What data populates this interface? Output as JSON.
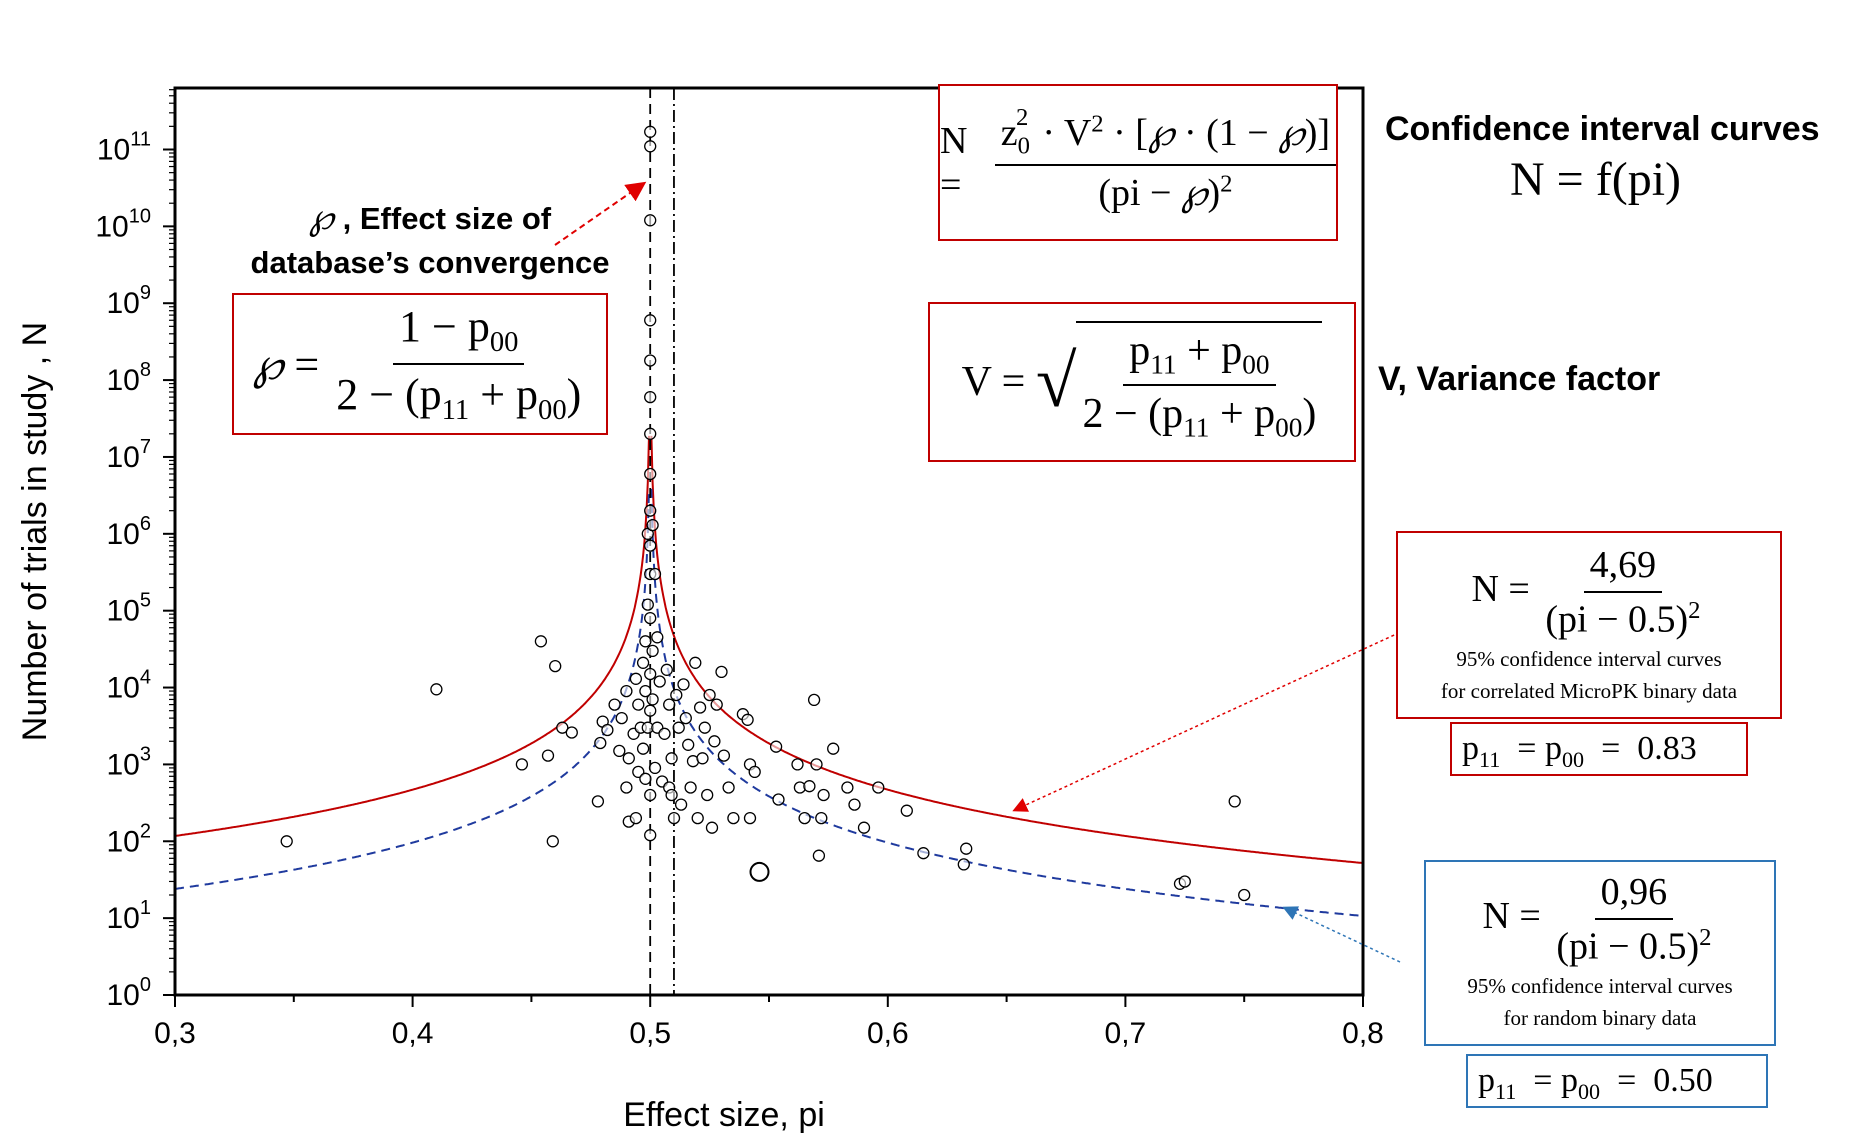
{
  "chart_data": {
    "type": "scatter",
    "title": "",
    "xlabel": "Effect size, pi",
    "ylabel": "Number of trials in study , N",
    "xlim": [
      0.3,
      0.8
    ],
    "ylim_log10": [
      0,
      11.8
    ],
    "log_y": true,
    "x_tick_labels": [
      "0,3",
      "0,4",
      "0,5",
      "0,6",
      "0,7",
      "0,8"
    ],
    "x_ticks": [
      0.3,
      0.4,
      0.5,
      0.6,
      0.7,
      0.8
    ],
    "y_tick_exponents": [
      "0",
      "1",
      "2",
      "3",
      "4",
      "5",
      "6",
      "7",
      "8",
      "9",
      "10",
      "11"
    ],
    "y_tick_base": "10",
    "grid": false,
    "vlines": [
      {
        "x": 0.5,
        "style": "dashed"
      },
      {
        "x": 0.51,
        "style": "dashdot"
      }
    ],
    "curves": [
      {
        "name": "95% confidence interval curves for correlated MicroPK binary data",
        "formula": "N = 4.69/(pi-0.5)^2",
        "k": 4.69,
        "color": "#c00000",
        "style": "solid"
      },
      {
        "name": "95% confidence interval curves for random binary data",
        "formula": "N = 0.96/(pi-0.5)^2",
        "k": 0.96,
        "color": "#1f3a9e",
        "style": "dashed"
      }
    ],
    "points": [
      [
        0.347,
        100
      ],
      [
        0.41,
        9500
      ],
      [
        0.446,
        1000
      ],
      [
        0.454,
        40000
      ],
      [
        0.457,
        1300
      ],
      [
        0.459,
        100
      ],
      [
        0.46,
        19000
      ],
      [
        0.463,
        3000
      ],
      [
        0.467,
        2600
      ],
      [
        0.478,
        330
      ],
      [
        0.479,
        1900
      ],
      [
        0.48,
        3600
      ],
      [
        0.482,
        2800
      ],
      [
        0.485,
        6000
      ],
      [
        0.487,
        1500
      ],
      [
        0.488,
        4000
      ],
      [
        0.49,
        9000
      ],
      [
        0.49,
        500
      ],
      [
        0.491,
        180
      ],
      [
        0.491,
        1200
      ],
      [
        0.493,
        2500
      ],
      [
        0.494,
        13000
      ],
      [
        0.494,
        200
      ],
      [
        0.495,
        800
      ],
      [
        0.495,
        6000
      ],
      [
        0.496,
        3000
      ],
      [
        0.497,
        1600
      ],
      [
        0.497,
        21000
      ],
      [
        0.498,
        650
      ],
      [
        0.498,
        9000
      ],
      [
        0.498,
        40000
      ],
      [
        0.499,
        120000
      ],
      [
        0.499,
        3000
      ],
      [
        0.499,
        1000000
      ],
      [
        0.5,
        400
      ],
      [
        0.5,
        120
      ],
      [
        0.5,
        5000
      ],
      [
        0.5,
        15000
      ],
      [
        0.5,
        80000
      ],
      [
        0.5,
        300000
      ],
      [
        0.5,
        700000
      ],
      [
        0.5,
        2000000
      ],
      [
        0.5,
        6000000
      ],
      [
        0.5,
        20000000
      ],
      [
        0.5,
        60000000
      ],
      [
        0.5,
        180000000
      ],
      [
        0.5,
        600000000
      ],
      [
        0.5,
        12000000000
      ],
      [
        0.5,
        110000000000
      ],
      [
        0.5,
        170000000000
      ],
      [
        0.501,
        30000
      ],
      [
        0.501,
        1300000
      ],
      [
        0.501,
        7000
      ],
      [
        0.502,
        900
      ],
      [
        0.502,
        300000
      ],
      [
        0.503,
        3000
      ],
      [
        0.503,
        45000
      ],
      [
        0.504,
        12000
      ],
      [
        0.505,
        600
      ],
      [
        0.506,
        2500
      ],
      [
        0.507,
        17000
      ],
      [
        0.508,
        500
      ],
      [
        0.508,
        6000
      ],
      [
        0.509,
        1200
      ],
      [
        0.509,
        400
      ],
      [
        0.51,
        200
      ],
      [
        0.511,
        8000
      ],
      [
        0.512,
        3000
      ],
      [
        0.513,
        300
      ],
      [
        0.514,
        11000
      ],
      [
        0.515,
        4000
      ],
      [
        0.516,
        1800
      ],
      [
        0.517,
        500
      ],
      [
        0.518,
        1100
      ],
      [
        0.519,
        21000
      ],
      [
        0.52,
        200
      ],
      [
        0.521,
        5500
      ],
      [
        0.522,
        1200
      ],
      [
        0.523,
        3000
      ],
      [
        0.524,
        400
      ],
      [
        0.525,
        8000
      ],
      [
        0.526,
        150
      ],
      [
        0.527,
        2000
      ],
      [
        0.528,
        6000
      ],
      [
        0.53,
        16000
      ],
      [
        0.531,
        1300
      ],
      [
        0.533,
        500
      ],
      [
        0.535,
        200
      ],
      [
        0.539,
        4500
      ],
      [
        0.541,
        3800
      ],
      [
        0.542,
        1000
      ],
      [
        0.542,
        200
      ],
      [
        0.544,
        800
      ],
      [
        0.546,
        40
      ],
      [
        0.553,
        1700
      ],
      [
        0.554,
        350
      ],
      [
        0.562,
        1000
      ],
      [
        0.563,
        500
      ],
      [
        0.565,
        200
      ],
      [
        0.567,
        520
      ],
      [
        0.569,
        6900
      ],
      [
        0.57,
        1000
      ],
      [
        0.571,
        65
      ],
      [
        0.572,
        200
      ],
      [
        0.573,
        400
      ],
      [
        0.577,
        1600
      ],
      [
        0.583,
        500
      ],
      [
        0.586,
        300
      ],
      [
        0.59,
        150
      ],
      [
        0.596,
        500
      ],
      [
        0.608,
        250
      ],
      [
        0.615,
        70
      ],
      [
        0.632,
        50
      ],
      [
        0.633,
        80
      ],
      [
        0.723,
        28
      ],
      [
        0.725,
        30
      ],
      [
        0.746,
        330
      ],
      [
        0.75,
        20
      ]
    ]
  },
  "annotations": {
    "convergence_label_line1": ", Effect size of",
    "convergence_label_line2": "database’s convergence",
    "conf_title": "Confidence interval curves",
    "conf_formula": "N = f(pi)",
    "variance_label": "V, Variance factor",
    "red_note_line1": "95% confidence interval curves",
    "red_note_line2": "for correlated MicroPK binary data",
    "red_k": "4,69",
    "red_p_value": "0.83",
    "blue_note_line1": "95% confidence interval curves",
    "blue_note_line2": "for random binary data",
    "blue_k": "0,96",
    "blue_p_value": "0.50"
  }
}
